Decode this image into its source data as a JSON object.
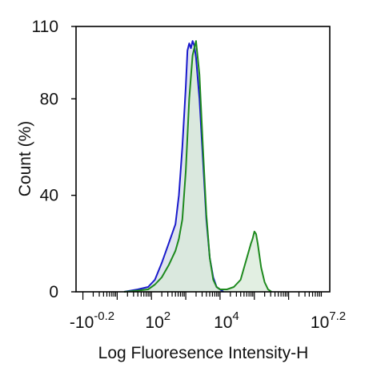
{
  "chart_data": {
    "type": "area",
    "title": "",
    "xlabel": "Log Fluoresence Intensity-H",
    "ylabel": "Count  (%)",
    "x_scale": "log10",
    "xlim": [
      -0.2,
      7.2
    ],
    "ylim": [
      0,
      110
    ],
    "y_ticks": [
      0,
      40,
      80,
      110
    ],
    "y_tick_labels": [
      "0",
      "40",
      "80",
      "110"
    ],
    "x_tick_labels": [
      {
        "base": "-10",
        "exp": "-0.2"
      },
      {
        "base": "10",
        "exp": "2"
      },
      {
        "base": "10",
        "exp": "4"
      },
      {
        "base": "10",
        "exp": "7.2"
      }
    ],
    "grid": false,
    "series": [
      {
        "color": "#1a1acc",
        "fill": "#d4dbe8",
        "x": [
          1.2,
          1.6,
          1.9,
          2.1,
          2.3,
          2.5,
          2.7,
          2.8,
          2.9,
          3.0,
          3.05,
          3.1,
          3.15,
          3.2,
          3.25,
          3.3,
          3.4,
          3.5,
          3.6,
          3.7,
          3.8,
          3.9,
          4.0,
          4.1
        ],
        "y": [
          0,
          1,
          2,
          5,
          12,
          20,
          28,
          40,
          60,
          85,
          100,
          103,
          101,
          104,
          102,
          97,
          80,
          55,
          30,
          14,
          6,
          2,
          1,
          0
        ]
      },
      {
        "color": "#1e8a1e",
        "fill": "#d8ead8",
        "x": [
          1.2,
          1.6,
          1.9,
          2.1,
          2.3,
          2.5,
          2.7,
          2.8,
          2.9,
          3.0,
          3.1,
          3.2,
          3.3,
          3.4,
          3.5,
          3.6,
          3.7,
          3.8,
          3.9,
          4.0,
          4.2,
          4.4,
          4.6,
          4.7,
          4.8,
          4.9,
          4.95,
          5.0,
          5.05,
          5.1,
          5.2,
          5.3,
          5.4,
          5.5
        ],
        "y": [
          0,
          0.5,
          1,
          3,
          6,
          11,
          17,
          22,
          30,
          50,
          80,
          98,
          104,
          90,
          60,
          32,
          14,
          5,
          2,
          1,
          1,
          2,
          5,
          10,
          15,
          20,
          22,
          25,
          24,
          20,
          10,
          4,
          1,
          0
        ]
      }
    ]
  }
}
